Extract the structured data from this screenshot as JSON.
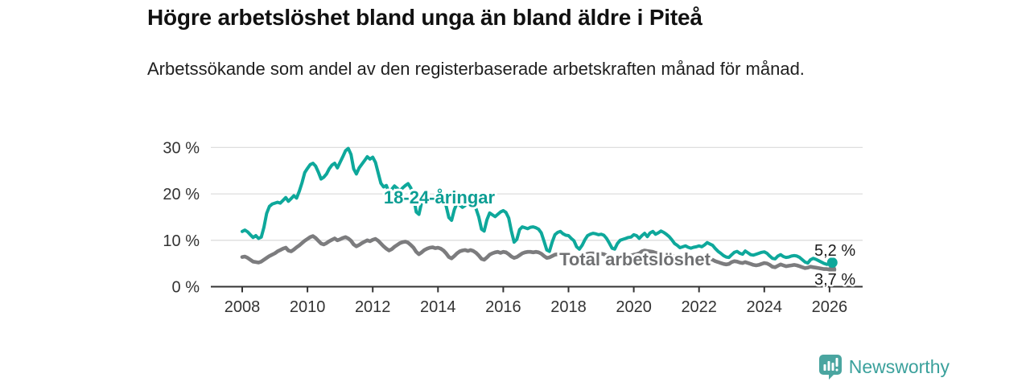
{
  "header": {
    "title": "Högre arbetslöshet bland unga än bland äldre i Piteå",
    "subtitle": "Arbetssökande som andel av den registerbaserade arbetskraften månad för månad."
  },
  "colors": {
    "youth_line": "#0ea89b",
    "youth_label": "#0d9e94",
    "total_line": "#7c7c7e",
    "total_label": "#6f7072",
    "grid": "#dedede",
    "axis": "#333333",
    "tick_text": "#333333",
    "value_text": "#1a1a1a",
    "logo_icon": "#4aa5a0",
    "logo_text": "#3ba19c"
  },
  "chart_data": {
    "type": "line",
    "x_start": {
      "year": 2008,
      "month": 1
    },
    "x_interval": "monthly",
    "ylim": [
      0,
      32
    ],
    "grid": "horizontal",
    "y_ticks": [
      {
        "value": 0,
        "label": "0 %"
      },
      {
        "value": 10,
        "label": "10 %"
      },
      {
        "value": 20,
        "label": "20 %"
      },
      {
        "value": 30,
        "label": "30 %"
      }
    ],
    "x_ticks": [
      {
        "year": 2008,
        "label": "2008"
      },
      {
        "year": 2010,
        "label": "2010"
      },
      {
        "year": 2012,
        "label": "2012"
      },
      {
        "year": 2014,
        "label": "2014"
      },
      {
        "year": 2016,
        "label": "2016"
      },
      {
        "year": 2018,
        "label": "2018"
      },
      {
        "year": 2020,
        "label": "2020"
      },
      {
        "year": 2022,
        "label": "2022"
      },
      {
        "year": 2024,
        "label": "2024"
      },
      {
        "year": 2026,
        "label": "2026"
      }
    ],
    "series": [
      {
        "name": "18-24-åringar",
        "end_label": "5,2 %",
        "values": [
          11.9,
          12.2,
          11.8,
          11.2,
          10.6,
          11.0,
          10.4,
          10.7,
          12.8,
          15.8,
          17.3,
          17.8,
          18.0,
          18.2,
          18.0,
          18.6,
          19.2,
          18.4,
          19.0,
          19.6,
          19.1,
          20.6,
          22.4,
          24.6,
          25.5,
          26.3,
          26.6,
          26.0,
          24.7,
          23.2,
          23.6,
          24.3,
          25.4,
          26.2,
          26.6,
          25.6,
          26.8,
          28.0,
          29.3,
          29.8,
          28.5,
          25.4,
          24.3,
          25.6,
          26.4,
          27.2,
          28.0,
          27.5,
          27.9,
          26.8,
          24.5,
          22.3,
          21.5,
          21.8,
          20.3,
          21.0,
          21.7,
          21.2,
          20.6,
          21.3,
          21.8,
          22.2,
          21.3,
          19.4,
          16.1,
          15.6,
          18.2,
          19.6,
          19.2,
          18.6,
          19.0,
          19.6,
          19.9,
          20.2,
          19.1,
          17.4,
          14.9,
          14.3,
          16.6,
          18.0,
          17.6,
          17.1,
          17.5,
          18.0,
          18.2,
          17.8,
          16.8,
          15.0,
          12.4,
          12.0,
          14.4,
          15.9,
          15.5,
          15.1,
          15.6,
          16.1,
          16.4,
          16.0,
          14.8,
          12.0,
          9.6,
          10.2,
          12.3,
          12.9,
          12.7,
          12.5,
          12.8,
          12.9,
          12.7,
          12.4,
          11.6,
          9.8,
          7.9,
          7.6,
          9.6,
          11.2,
          11.7,
          11.9,
          11.4,
          11.1,
          11.0,
          10.4,
          9.9,
          8.6,
          8.1,
          8.9,
          10.1,
          11.0,
          11.3,
          11.5,
          11.4,
          11.2,
          11.3,
          11.1,
          10.4,
          9.4,
          8.3,
          8.1,
          9.3,
          10.0,
          10.2,
          10.4,
          10.6,
          10.7,
          11.2,
          11.0,
          10.4,
          11.0,
          11.5,
          10.8,
          11.6,
          11.9,
          11.3,
          11.6,
          12.0,
          11.7,
          11.3,
          10.8,
          10.1,
          9.3,
          8.9,
          8.4,
          8.6,
          8.8,
          8.5,
          8.3,
          8.5,
          8.6,
          8.8,
          8.6,
          9.0,
          9.5,
          9.2,
          8.9,
          8.2,
          7.6,
          7.2,
          6.7,
          6.4,
          6.3,
          6.9,
          7.4,
          7.6,
          7.2,
          7.0,
          7.7,
          7.3,
          6.9,
          6.8,
          7.0,
          7.2,
          7.4,
          7.5,
          7.2,
          6.6,
          6.1,
          6.0,
          6.6,
          6.9,
          6.5,
          6.3,
          6.4,
          6.6,
          6.7,
          6.6,
          6.3,
          5.8,
          5.3,
          5.1,
          5.8,
          6.1,
          5.9,
          5.6,
          5.3,
          5.0,
          4.8,
          4.9,
          5.2
        ]
      },
      {
        "name": "Total arbetslöshet",
        "end_label": "3,7 %",
        "values": [
          6.4,
          6.5,
          6.2,
          5.8,
          5.4,
          5.3,
          5.2,
          5.4,
          5.8,
          6.2,
          6.6,
          6.9,
          7.2,
          7.6,
          7.9,
          8.2,
          8.4,
          7.8,
          7.6,
          8.0,
          8.5,
          8.9,
          9.4,
          9.9,
          10.3,
          10.7,
          10.9,
          10.5,
          9.9,
          9.3,
          9.1,
          9.4,
          9.8,
          10.1,
          10.4,
          10.0,
          10.2,
          10.5,
          10.7,
          10.4,
          9.9,
          9.1,
          8.7,
          9.0,
          9.4,
          9.7,
          10.0,
          9.8,
          10.1,
          10.3,
          9.9,
          9.3,
          8.7,
          8.2,
          7.8,
          8.1,
          8.6,
          9.0,
          9.4,
          9.6,
          9.7,
          9.5,
          9.0,
          8.4,
          7.5,
          7.0,
          7.4,
          7.9,
          8.2,
          8.4,
          8.5,
          8.3,
          8.4,
          8.2,
          7.8,
          7.2,
          6.4,
          6.1,
          6.6,
          7.2,
          7.6,
          7.8,
          7.9,
          7.7,
          7.9,
          7.7,
          7.3,
          6.7,
          6.0,
          5.8,
          6.3,
          6.9,
          7.2,
          7.4,
          7.5,
          7.3,
          7.5,
          7.4,
          7.0,
          6.5,
          6.2,
          6.4,
          6.8,
          7.2,
          7.4,
          7.5,
          7.5,
          7.4,
          7.5,
          7.4,
          7.1,
          6.6,
          6.2,
          6.3,
          6.6,
          6.9,
          7.0,
          6.9,
          6.7,
          6.5,
          6.7,
          6.6,
          6.3,
          6.0,
          6.2,
          6.6,
          6.9,
          7.1,
          7.2,
          7.2,
          7.1,
          7.0,
          7.1,
          7.0,
          6.7,
          6.3,
          6.0,
          6.1,
          6.4,
          6.6,
          6.7,
          6.8,
          6.8,
          6.7,
          6.9,
          7.0,
          7.2,
          7.6,
          7.8,
          7.7,
          7.6,
          7.5,
          7.3,
          7.2,
          7.1,
          7.0,
          7.0,
          6.9,
          6.7,
          6.5,
          6.3,
          6.1,
          6.0,
          5.9,
          5.8,
          5.7,
          5.7,
          5.8,
          5.8,
          5.7,
          5.8,
          6.0,
          5.9,
          5.8,
          5.5,
          5.3,
          5.1,
          4.9,
          4.8,
          4.9,
          5.3,
          5.5,
          5.4,
          5.2,
          5.1,
          5.3,
          5.1,
          4.9,
          4.7,
          4.6,
          4.7,
          4.9,
          5.1,
          5.0,
          4.7,
          4.3,
          4.2,
          4.5,
          4.8,
          4.6,
          4.4,
          4.5,
          4.6,
          4.7,
          4.6,
          4.4,
          4.2,
          4.0,
          4.1,
          4.3,
          4.2,
          4.1,
          4.0,
          3.9,
          3.8,
          3.8,
          3.7,
          3.7
        ]
      }
    ]
  },
  "footer": {
    "brand": "Newsworthy",
    "logo_icon": "bar-chart-bubble-icon"
  }
}
